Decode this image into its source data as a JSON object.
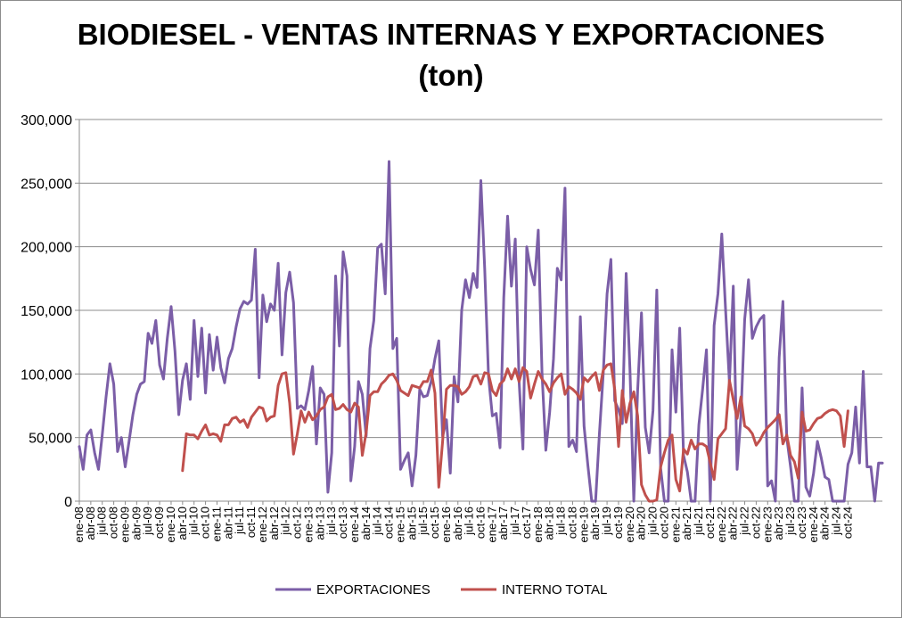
{
  "chart_data": {
    "type": "line",
    "title": "BIODIESEL - VENTAS INTERNAS Y EXPORTACIONES",
    "subtitle": "(ton)",
    "ylim": [
      0,
      300000
    ],
    "y_ticks": [
      "0",
      "50,000",
      "100,000",
      "150,000",
      "200,000",
      "250,000",
      "300,000"
    ],
    "grid": true,
    "legend_position": "bottom",
    "x_tick_labels": [
      "ene-08",
      "abr-08",
      "jul-08",
      "oct-08",
      "ene-09",
      "abr-09",
      "jul-09",
      "oct-09",
      "ene-10",
      "abr-10",
      "jul-10",
      "oct-10",
      "ene-11",
      "abr-11",
      "jul-11",
      "oct-11",
      "ene-12",
      "abr-12",
      "jul-12",
      "oct-12",
      "ene-13",
      "abr-13",
      "jul-13",
      "oct-13",
      "ene-14",
      "abr-14",
      "jul-14",
      "oct-14",
      "ene-15",
      "abr-15",
      "jul-15",
      "oct-15",
      "ene-16",
      "abr-16",
      "jul-16",
      "oct-16",
      "ene-17",
      "abr-17",
      "jul-17",
      "oct-17",
      "ene-18",
      "abr-18",
      "jul-18",
      "oct-18",
      "ene-19",
      "abr-19",
      "jul-19",
      "oct-19",
      "ene-20",
      "abr-20",
      "jul-20",
      "oct-20",
      "ene-21",
      "abr-21",
      "jul-21",
      "oct-21",
      "ene-22",
      "abr-22",
      "jul-22",
      "oct-22",
      "ene-23",
      "abr-23",
      "jul-23",
      "oct-23",
      "ene-24",
      "abr-24",
      "jul-24",
      "oct-24"
    ],
    "series": [
      {
        "name": "EXPORTACIONES",
        "color": "#7b5ea7",
        "values": [
          43000,
          25000,
          52000,
          56000,
          38000,
          25000,
          52000,
          82000,
          108000,
          92000,
          39000,
          50000,
          27000,
          47000,
          68000,
          84000,
          92000,
          94000,
          132000,
          124000,
          142000,
          107000,
          96000,
          128000,
          153000,
          118000,
          68000,
          95000,
          108000,
          80000,
          142000,
          98000,
          136000,
          85000,
          131000,
          103000,
          129000,
          105000,
          93000,
          112000,
          120000,
          137000,
          151000,
          157000,
          155000,
          158000,
          198000,
          97000,
          162000,
          141000,
          155000,
          150000,
          187000,
          115000,
          164000,
          180000,
          156000,
          73000,
          75000,
          72000,
          87000,
          106000,
          45000,
          89000,
          84000,
          7000,
          38000,
          177000,
          122000,
          196000,
          177000,
          16000,
          43000,
          94000,
          84000,
          51000,
          120000,
          142000,
          199000,
          202000,
          163000,
          267000,
          120000,
          128000,
          25000,
          32000,
          38000,
          12000,
          36000,
          88000,
          82000,
          83000,
          94000,
          112000,
          126000,
          51000,
          64000,
          22000,
          98000,
          78000,
          150000,
          174000,
          160000,
          179000,
          168000,
          252000,
          183000,
          98000,
          67000,
          69000,
          42000,
          160000,
          224000,
          169000,
          206000,
          94000,
          41000,
          200000,
          182000,
          170000,
          213000,
          101000,
          40000,
          70000,
          112000,
          183000,
          174000,
          246000,
          43000,
          48000,
          39000,
          145000,
          59000,
          28000,
          0,
          0,
          53000,
          100000,
          163000,
          190000,
          79000,
          72000,
          61000,
          179000,
          103000,
          0,
          87000,
          148000,
          58000,
          38000,
          71000,
          166000,
          26000,
          0,
          0,
          119000,
          70000,
          136000,
          36000,
          23000,
          0,
          0,
          60000,
          88000,
          119000,
          0,
          138000,
          163000,
          210000,
          150000,
          93000,
          169000,
          25000,
          67000,
          143000,
          174000,
          128000,
          137000,
          143000,
          146000,
          12000,
          16000,
          0,
          113000,
          157000,
          50000,
          27000,
          0,
          0,
          89000,
          11000,
          4000,
          22000,
          47000,
          34000,
          19000,
          17000,
          0,
          0,
          0,
          0,
          29000,
          38000,
          74000,
          30000,
          102000,
          27000,
          27000,
          0,
          30000,
          30000
        ]
      },
      {
        "name": "INTERNO TOTAL",
        "color": "#c0504d",
        "start_index": 27,
        "values": [
          24000,
          53000,
          52000,
          52000,
          49000,
          55000,
          60000,
          52000,
          53000,
          52000,
          47000,
          60000,
          60000,
          65000,
          66000,
          62000,
          64000,
          58000,
          66000,
          70000,
          74000,
          73000,
          63000,
          66000,
          67000,
          91000,
          100000,
          101000,
          77000,
          37000,
          53000,
          71000,
          62000,
          70000,
          64000,
          67000,
          72000,
          74000,
          82000,
          84000,
          72000,
          73000,
          76000,
          72000,
          70000,
          77000,
          74000,
          36000,
          54000,
          83000,
          86000,
          86000,
          92000,
          95000,
          99000,
          100000,
          95000,
          87000,
          85000,
          83000,
          91000,
          90000,
          89000,
          94000,
          94000,
          103000,
          85000,
          11000,
          47000,
          88000,
          91000,
          91000,
          90000,
          84000,
          86000,
          90000,
          98000,
          99000,
          92000,
          101000,
          100000,
          87000,
          83000,
          92000,
          95000,
          104000,
          96000,
          104000,
          94000,
          105000,
          102000,
          81000,
          92000,
          102000,
          96000,
          92000,
          86000,
          93000,
          97000,
          100000,
          84000,
          90000,
          88000,
          85000,
          80000,
          97000,
          94000,
          98000,
          101000,
          87000,
          103000,
          107000,
          108000,
          88000,
          43000,
          87000,
          62000,
          77000,
          86000,
          67000,
          13000,
          5000,
          0,
          0,
          1000,
          27000,
          38000,
          48000,
          52000,
          17000,
          8000,
          41000,
          37000,
          48000,
          41000,
          45000,
          45000,
          43000,
          30000,
          17000,
          49000,
          53000,
          57000,
          95000,
          80000,
          65000,
          82000,
          59000,
          57000,
          53000,
          44000,
          48000,
          54000,
          58000,
          61000,
          64000,
          68000,
          45000,
          52000,
          36000,
          31000,
          18000,
          70000,
          55000,
          56000,
          61000,
          65000,
          66000,
          69000,
          71000,
          72000,
          71000,
          67000,
          43000,
          71000
        ]
      }
    ]
  }
}
